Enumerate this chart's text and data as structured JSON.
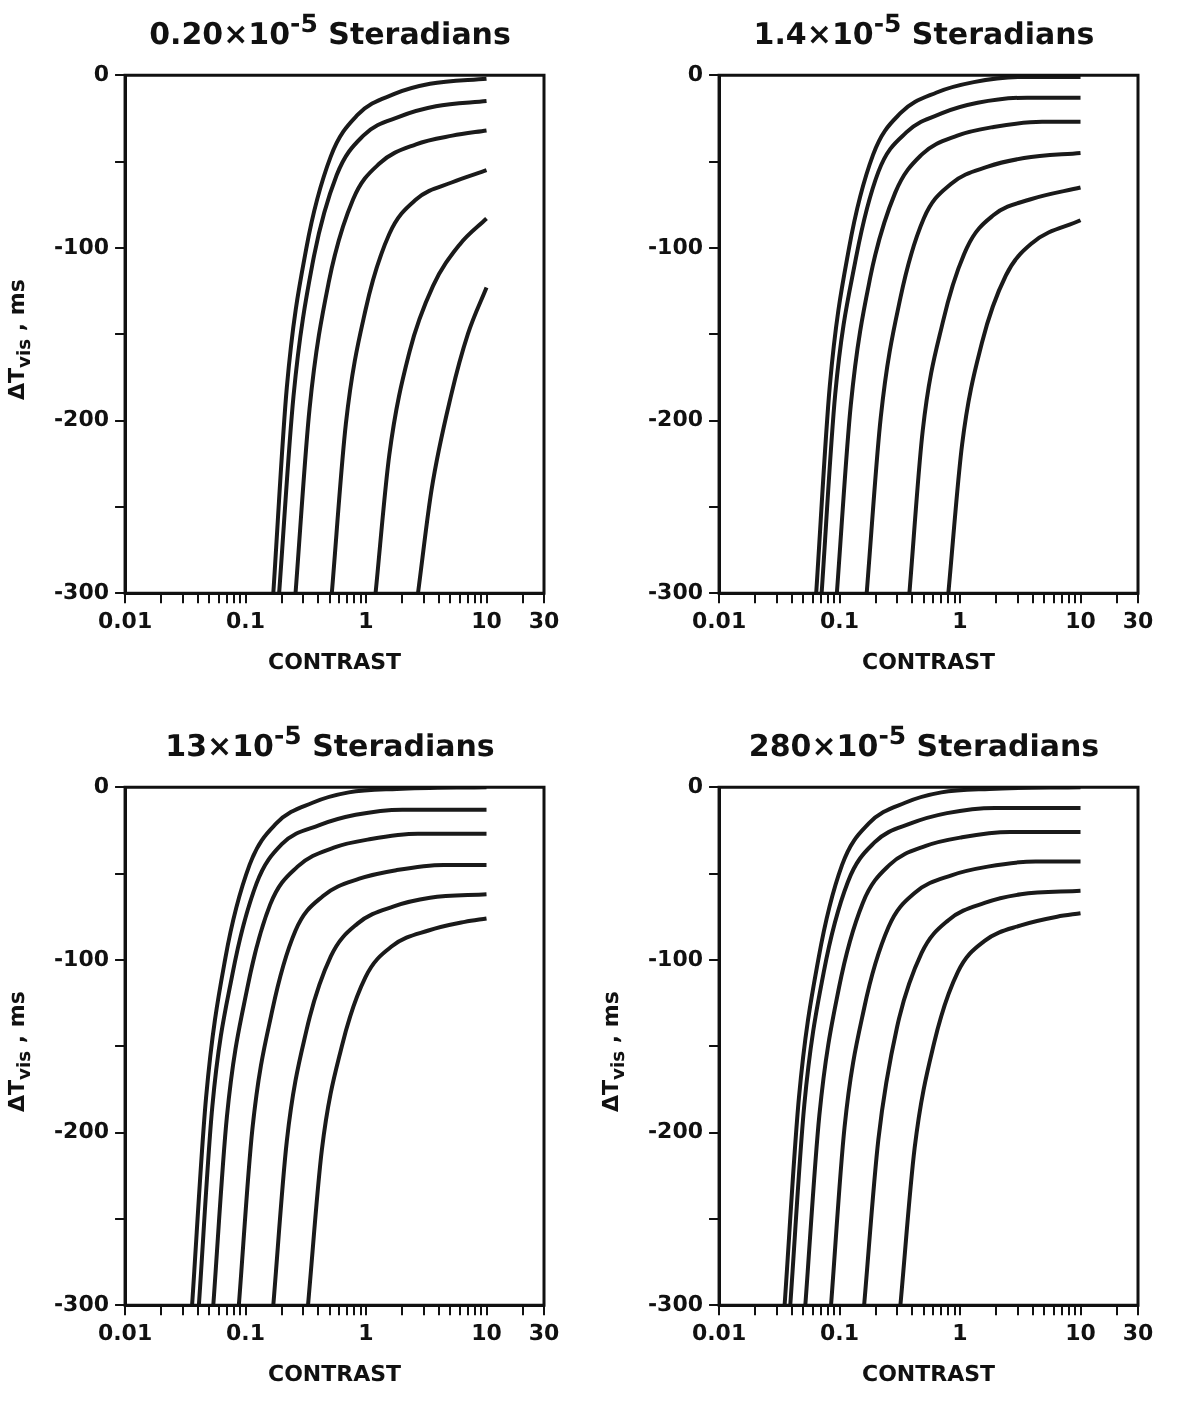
{
  "chart_data": [
    {
      "type": "line",
      "title": "0.20×10$^{-5}$ Steradians",
      "xlabel": "CONTRAST",
      "ylabel": "ΔT$_{vis}$ , ms",
      "log": "x",
      "xlim": [
        0.01,
        30
      ],
      "ylim": [
        -300,
        0
      ],
      "xticks": [
        0.01,
        {
          "value": 0.02,
          "label": null
        },
        {
          "value": 0.03,
          "label": null
        },
        {
          "value": 0.04,
          "label": null
        },
        {
          "value": 0.05,
          "label": null
        },
        {
          "value": 0.06,
          "label": null
        },
        {
          "value": 0.07,
          "label": null
        },
        {
          "value": 0.08,
          "label": null
        },
        {
          "value": 0.09,
          "label": null
        },
        0.1,
        {
          "value": 0.2,
          "label": null
        },
        {
          "value": 0.3,
          "label": null
        },
        {
          "value": 0.4,
          "label": null
        },
        {
          "value": 0.5,
          "label": null
        },
        {
          "value": 0.6,
          "label": null
        },
        {
          "value": 0.7,
          "label": null
        },
        {
          "value": 0.8,
          "label": null
        },
        {
          "value": 0.9,
          "label": null
        },
        1,
        {
          "value": 2,
          "label": null
        },
        {
          "value": 3,
          "label": null
        },
        {
          "value": 4,
          "label": null
        },
        {
          "value": 5,
          "label": null
        },
        {
          "value": 6,
          "label": null
        },
        {
          "value": 7,
          "label": null
        },
        {
          "value": 8,
          "label": null
        },
        {
          "value": 9,
          "label": null
        },
        10,
        {
          "value": 20,
          "label": null
        },
        30
      ],
      "yticks": [
        0,
        {
          "value": -50,
          "label": null
        },
        -100,
        {
          "value": -150,
          "label": null
        },
        -200,
        {
          "value": -250,
          "label": null
        },
        -300
      ],
      "series": [
        {
          "color": "#1a1a1a",
          "x": [
            0.17,
            0.22,
            0.32,
            0.51,
            0.85,
            1.7,
            3.4,
            10
          ],
          "values": [
            -300,
            -181,
            -100,
            -47,
            -23,
            -11,
            -5,
            -2
          ]
        },
        {
          "color": "#1a1a1a",
          "x": [
            0.19,
            0.25,
            0.36,
            0.57,
            0.95,
            1.9,
            3.8,
            10
          ],
          "values": [
            -300,
            -186,
            -109,
            -58,
            -35,
            -24,
            -18,
            -15
          ]
        },
        {
          "color": "#1a1a1a",
          "x": [
            0.26,
            0.34,
            0.49,
            0.78,
            1.3,
            2.6,
            5.2,
            10
          ],
          "values": [
            -300,
            -193,
            -120,
            -72,
            -51,
            -40,
            -35,
            -32
          ]
        },
        {
          "color": "#1a1a1a",
          "x": [
            0.52,
            0.68,
            0.99,
            1.56,
            2.6,
            5.2,
            10
          ],
          "values": [
            -300,
            -202,
            -136,
            -92,
            -72,
            -62,
            -55
          ]
        },
        {
          "color": "#1a1a1a",
          "x": [
            1.2,
            1.56,
            2.3,
            3.6,
            6,
            10
          ],
          "values": [
            -300,
            -220,
            -160,
            -122,
            -98,
            -83
          ]
        },
        {
          "color": "#1a1a1a",
          "x": [
            2.7,
            3.5,
            5.1,
            7,
            10
          ],
          "values": [
            -300,
            -240,
            -185,
            -150,
            -123
          ]
        }
      ]
    },
    {
      "type": "line",
      "title": "1.4×10$^{-5}$ Steradians",
      "xlabel": "CONTRAST",
      "log": "x",
      "xlim": [
        0.01,
        30
      ],
      "ylim": [
        -300,
        0
      ],
      "xticks": [
        0.01,
        {
          "value": 0.02,
          "label": null
        },
        {
          "value": 0.03,
          "label": null
        },
        {
          "value": 0.04,
          "label": null
        },
        {
          "value": 0.05,
          "label": null
        },
        {
          "value": 0.06,
          "label": null
        },
        {
          "value": 0.07,
          "label": null
        },
        {
          "value": 0.08,
          "label": null
        },
        {
          "value": 0.09,
          "label": null
        },
        0.1,
        {
          "value": 0.2,
          "label": null
        },
        {
          "value": 0.3,
          "label": null
        },
        {
          "value": 0.4,
          "label": null
        },
        {
          "value": 0.5,
          "label": null
        },
        {
          "value": 0.6,
          "label": null
        },
        {
          "value": 0.7,
          "label": null
        },
        {
          "value": 0.8,
          "label": null
        },
        {
          "value": 0.9,
          "label": null
        },
        1,
        {
          "value": 2,
          "label": null
        },
        {
          "value": 3,
          "label": null
        },
        {
          "value": 4,
          "label": null
        },
        {
          "value": 5,
          "label": null
        },
        {
          "value": 6,
          "label": null
        },
        {
          "value": 7,
          "label": null
        },
        {
          "value": 8,
          "label": null
        },
        {
          "value": 9,
          "label": null
        },
        10,
        {
          "value": 20,
          "label": null
        },
        30
      ],
      "yticks": [
        0,
        {
          "value": -50,
          "label": null
        },
        -100,
        {
          "value": -150,
          "label": null
        },
        -200,
        {
          "value": -250,
          "label": null
        },
        -300
      ],
      "series": [
        {
          "color": "#1a1a1a",
          "x": [
            0.064,
            0.083,
            0.12,
            0.19,
            0.32,
            0.64,
            1.3,
            3.2,
            10
          ],
          "values": [
            -300,
            -180,
            -100,
            -46,
            -22,
            -10,
            -4,
            -1,
            -1
          ]
        },
        {
          "color": "#1a1a1a",
          "x": [
            0.071,
            0.092,
            0.135,
            0.21,
            0.36,
            0.71,
            1.4,
            3.6,
            10
          ],
          "values": [
            -300,
            -185,
            -108,
            -56,
            -33,
            -22,
            -16,
            -13,
            -13
          ]
        },
        {
          "color": "#1a1a1a",
          "x": [
            0.095,
            0.124,
            0.18,
            0.29,
            0.48,
            0.95,
            1.9,
            4.8,
            10
          ],
          "values": [
            -300,
            -191,
            -117,
            -68,
            -46,
            -35,
            -30,
            -27,
            -27
          ]
        },
        {
          "color": "#1a1a1a",
          "x": [
            0.168,
            0.22,
            0.32,
            0.5,
            0.84,
            1.7,
            3.4,
            10
          ],
          "values": [
            -300,
            -198,
            -129,
            -83,
            -63,
            -53,
            -48,
            -45
          ]
        },
        {
          "color": "#1a1a1a",
          "x": [
            0.38,
            0.49,
            0.72,
            1.14,
            1.9,
            3.8,
            10
          ],
          "values": [
            -300,
            -206,
            -143,
            -100,
            -81,
            -72,
            -65
          ]
        },
        {
          "color": "#1a1a1a",
          "x": [
            0.8,
            1.04,
            1.52,
            2.4,
            4,
            10
          ],
          "values": [
            -300,
            -214,
            -155,
            -116,
            -97,
            -84
          ]
        }
      ]
    },
    {
      "type": "line",
      "title": "13×10$^{-5}$ Steradians",
      "xlabel": "CONTRAST",
      "ylabel": "ΔT$_{vis}$ , ms",
      "log": "x",
      "xlim": [
        0.01,
        30
      ],
      "ylim": [
        -300,
        0
      ],
      "xticks": [
        0.01,
        {
          "value": 0.02,
          "label": null
        },
        {
          "value": 0.03,
          "label": null
        },
        {
          "value": 0.04,
          "label": null
        },
        {
          "value": 0.05,
          "label": null
        },
        {
          "value": 0.06,
          "label": null
        },
        {
          "value": 0.07,
          "label": null
        },
        {
          "value": 0.08,
          "label": null
        },
        {
          "value": 0.09,
          "label": null
        },
        0.1,
        {
          "value": 0.2,
          "label": null
        },
        {
          "value": 0.3,
          "label": null
        },
        {
          "value": 0.4,
          "label": null
        },
        {
          "value": 0.5,
          "label": null
        },
        {
          "value": 0.6,
          "label": null
        },
        {
          "value": 0.7,
          "label": null
        },
        {
          "value": 0.8,
          "label": null
        },
        {
          "value": 0.9,
          "label": null
        },
        1,
        {
          "value": 2,
          "label": null
        },
        {
          "value": 3,
          "label": null
        },
        {
          "value": 4,
          "label": null
        },
        {
          "value": 5,
          "label": null
        },
        {
          "value": 6,
          "label": null
        },
        {
          "value": 7,
          "label": null
        },
        {
          "value": 8,
          "label": null
        },
        {
          "value": 9,
          "label": null
        },
        10,
        {
          "value": 20,
          "label": null
        },
        30
      ],
      "yticks": [
        0,
        {
          "value": -50,
          "label": null
        },
        -100,
        {
          "value": -150,
          "label": null
        },
        -200,
        {
          "value": -250,
          "label": null
        },
        -300
      ],
      "series": [
        {
          "color": "#1a1a1a",
          "x": [
            0.036,
            0.047,
            0.068,
            0.108,
            0.18,
            0.36,
            0.72,
            1.8,
            10
          ],
          "values": [
            -300,
            -180,
            -99,
            -45,
            -21,
            -9,
            -3,
            -1,
            0
          ]
        },
        {
          "color": "#1a1a1a",
          "x": [
            0.041,
            0.053,
            0.078,
            0.123,
            0.2,
            0.41,
            0.82,
            2,
            10
          ],
          "values": [
            -300,
            -185,
            -108,
            -56,
            -33,
            -22,
            -16,
            -13,
            -13
          ]
        },
        {
          "color": "#1a1a1a",
          "x": [
            0.054,
            0.07,
            0.103,
            0.16,
            0.27,
            0.54,
            1.1,
            2.7,
            10
          ],
          "values": [
            -300,
            -191,
            -117,
            -68,
            -46,
            -35,
            -30,
            -27,
            -27
          ]
        },
        {
          "color": "#1a1a1a",
          "x": [
            0.088,
            0.114,
            0.167,
            0.26,
            0.44,
            0.88,
            1.8,
            4.4,
            10
          ],
          "values": [
            -300,
            -198,
            -129,
            -83,
            -63,
            -53,
            -48,
            -45,
            -45
          ]
        },
        {
          "color": "#1a1a1a",
          "x": [
            0.17,
            0.22,
            0.32,
            0.51,
            0.85,
            1.7,
            3.4,
            10
          ],
          "values": [
            -300,
            -205,
            -141,
            -98,
            -79,
            -69,
            -64,
            -62
          ]
        },
        {
          "color": "#1a1a1a",
          "x": [
            0.33,
            0.43,
            0.63,
            0.99,
            1.65,
            3.3,
            6.6,
            10
          ],
          "values": [
            -300,
            -210,
            -150,
            -110,
            -92,
            -83,
            -78,
            -76
          ]
        }
      ]
    },
    {
      "type": "line",
      "title": "280×10$^{-5}$ Steradians",
      "xlabel": "CONTRAST",
      "ylabel": "ΔT$_{vis}$ , ms",
      "log": "x",
      "xlim": [
        0.01,
        30
      ],
      "ylim": [
        -300,
        0
      ],
      "xticks": [
        0.01,
        {
          "value": 0.02,
          "label": null
        },
        {
          "value": 0.03,
          "label": null
        },
        {
          "value": 0.04,
          "label": null
        },
        {
          "value": 0.05,
          "label": null
        },
        {
          "value": 0.06,
          "label": null
        },
        {
          "value": 0.07,
          "label": null
        },
        {
          "value": 0.08,
          "label": null
        },
        {
          "value": 0.09,
          "label": null
        },
        0.1,
        {
          "value": 0.2,
          "label": null
        },
        {
          "value": 0.3,
          "label": null
        },
        {
          "value": 0.4,
          "label": null
        },
        {
          "value": 0.5,
          "label": null
        },
        {
          "value": 0.6,
          "label": null
        },
        {
          "value": 0.7,
          "label": null
        },
        {
          "value": 0.8,
          "label": null
        },
        {
          "value": 0.9,
          "label": null
        },
        1,
        {
          "value": 2,
          "label": null
        },
        {
          "value": 3,
          "label": null
        },
        {
          "value": 4,
          "label": null
        },
        {
          "value": 5,
          "label": null
        },
        {
          "value": 6,
          "label": null
        },
        {
          "value": 7,
          "label": null
        },
        {
          "value": 8,
          "label": null
        },
        {
          "value": 9,
          "label": null
        },
        10,
        {
          "value": 20,
          "label": null
        },
        30
      ],
      "yticks": [
        0,
        {
          "value": -50,
          "label": null
        },
        -100,
        {
          "value": -150,
          "label": null
        },
        -200,
        {
          "value": -250,
          "label": null
        },
        -300
      ],
      "series": [
        {
          "color": "#1a1a1a",
          "x": [
            0.035,
            0.046,
            0.067,
            0.105,
            0.175,
            0.35,
            0.7,
            1.75,
            10
          ],
          "values": [
            -300,
            -180,
            -99,
            -45,
            -21,
            -9,
            -3,
            -1,
            0
          ]
        },
        {
          "color": "#1a1a1a",
          "x": [
            0.039,
            0.051,
            0.074,
            0.117,
            0.195,
            0.39,
            0.78,
            1.95,
            10
          ],
          "values": [
            -300,
            -184,
            -107,
            -55,
            -32,
            -21,
            -15,
            -12,
            -12
          ]
        },
        {
          "color": "#1a1a1a",
          "x": [
            0.052,
            0.068,
            0.099,
            0.156,
            0.26,
            0.52,
            1.04,
            2.6,
            10
          ],
          "values": [
            -300,
            -190,
            -116,
            -67,
            -45,
            -34,
            -29,
            -26,
            -26
          ]
        },
        {
          "color": "#1a1a1a",
          "x": [
            0.085,
            0.11,
            0.16,
            0.255,
            0.425,
            0.85,
            1.7,
            4.25,
            10
          ],
          "values": [
            -300,
            -197,
            -128,
            -81,
            -61,
            -51,
            -46,
            -43,
            -43
          ]
        },
        {
          "color": "#1a1a1a",
          "x": [
            0.16,
            0.21,
            0.3,
            0.48,
            0.8,
            1.6,
            3.2,
            10
          ],
          "values": [
            -300,
            -204,
            -139,
            -96,
            -77,
            -67,
            -62,
            -60
          ]
        },
        {
          "color": "#1a1a1a",
          "x": [
            0.32,
            0.42,
            0.61,
            0.96,
            1.6,
            3.2,
            6.4,
            10
          ],
          "values": [
            -300,
            -209,
            -148,
            -107,
            -89,
            -80,
            -75,
            -73
          ]
        }
      ]
    }
  ]
}
